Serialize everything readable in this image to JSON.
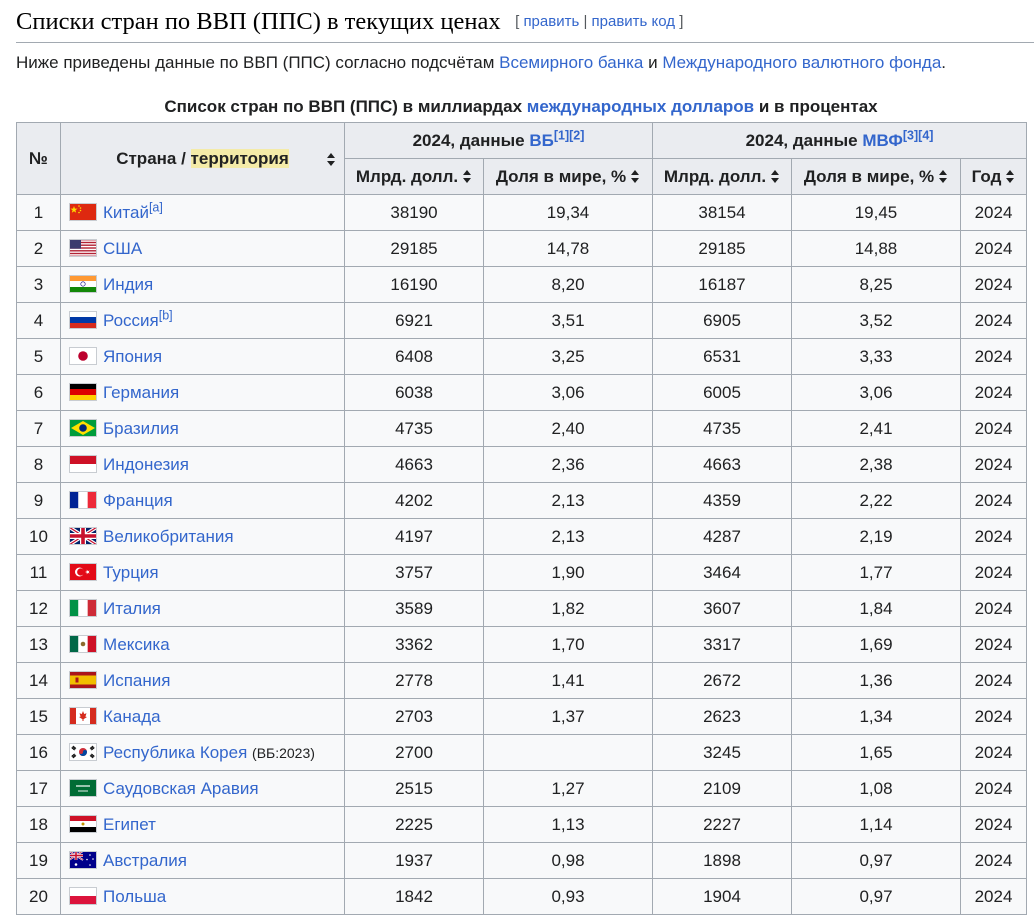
{
  "section": {
    "title": "Списки стран по ВВП (ППС) в текущих ценах",
    "edit_open": "[ ",
    "edit_label": "править",
    "edit_sep": " | ",
    "edit_code_label": "править код",
    "edit_close": " ]"
  },
  "intro": {
    "text_before": "Ниже приведены данные по ВВП (ППС) согласно подсчётам ",
    "link_wb": "Всемирного банка",
    "text_and": " и ",
    "link_imf": "Международного валютного фонда",
    "text_end": "."
  },
  "caption": {
    "text_before": "Список стран по ВВП (ППС) в миллиардах ",
    "link": "международных долларов",
    "text_after": " и в процентах"
  },
  "header": {
    "num": "№",
    "country_before": "Страна / ",
    "country_highlight": "территория",
    "wb_group_before": "2024, данные ",
    "wb_link": "ВБ",
    "wb_refs": [
      "[1]",
      "[2]"
    ],
    "imf_group_before": "2024, данные ",
    "imf_link": "МВФ",
    "imf_refs": [
      "[3]",
      "[4]"
    ],
    "col_bn": "Млрд. долл.",
    "col_share": "Доля в мире, %",
    "col_bn2": "Млрд. долл.",
    "col_share2": "Доля в мире, %",
    "col_year": "Год"
  },
  "rows": [
    {
      "n": "1",
      "flag": "china-flag-icon",
      "name": "Китай",
      "note": "[a]",
      "extra": "",
      "wb": "38190",
      "wb_share": "19,34",
      "imf": "38154",
      "imf_share": "19,45",
      "year": "2024"
    },
    {
      "n": "2",
      "flag": "usa-flag-icon",
      "name": "США",
      "note": "",
      "extra": "",
      "wb": "29185",
      "wb_share": "14,78",
      "imf": "29185",
      "imf_share": "14,88",
      "year": "2024"
    },
    {
      "n": "3",
      "flag": "india-flag-icon",
      "name": "Индия",
      "note": "",
      "extra": "",
      "wb": "16190",
      "wb_share": "8,20",
      "imf": "16187",
      "imf_share": "8,25",
      "year": "2024"
    },
    {
      "n": "4",
      "flag": "russia-flag-icon",
      "name": "Россия",
      "note": "[b]",
      "extra": "",
      "wb": "6921",
      "wb_share": "3,51",
      "imf": "6905",
      "imf_share": "3,52",
      "year": "2024"
    },
    {
      "n": "5",
      "flag": "japan-flag-icon",
      "name": "Япония",
      "note": "",
      "extra": "",
      "wb": "6408",
      "wb_share": "3,25",
      "imf": "6531",
      "imf_share": "3,33",
      "year": "2024"
    },
    {
      "n": "6",
      "flag": "germany-flag-icon",
      "name": "Германия",
      "note": "",
      "extra": "",
      "wb": "6038",
      "wb_share": "3,06",
      "imf": "6005",
      "imf_share": "3,06",
      "year": "2024"
    },
    {
      "n": "7",
      "flag": "brazil-flag-icon",
      "name": "Бразилия",
      "note": "",
      "extra": "",
      "wb": "4735",
      "wb_share": "2,40",
      "imf": "4735",
      "imf_share": "2,41",
      "year": "2024"
    },
    {
      "n": "8",
      "flag": "indonesia-flag-icon",
      "name": "Индонезия",
      "note": "",
      "extra": "",
      "wb": "4663",
      "wb_share": "2,36",
      "imf": "4663",
      "imf_share": "2,38",
      "year": "2024"
    },
    {
      "n": "9",
      "flag": "france-flag-icon",
      "name": "Франция",
      "note": "",
      "extra": "",
      "wb": "4202",
      "wb_share": "2,13",
      "imf": "4359",
      "imf_share": "2,22",
      "year": "2024"
    },
    {
      "n": "10",
      "flag": "uk-flag-icon",
      "name": "Великобритания",
      "note": "",
      "extra": "",
      "wb": "4197",
      "wb_share": "2,13",
      "imf": "4287",
      "imf_share": "2,19",
      "year": "2024"
    },
    {
      "n": "11",
      "flag": "turkey-flag-icon",
      "name": "Турция",
      "note": "",
      "extra": "",
      "wb": "3757",
      "wb_share": "1,90",
      "imf": "3464",
      "imf_share": "1,77",
      "year": "2024"
    },
    {
      "n": "12",
      "flag": "italy-flag-icon",
      "name": "Италия",
      "note": "",
      "extra": "",
      "wb": "3589",
      "wb_share": "1,82",
      "imf": "3607",
      "imf_share": "1,84",
      "year": "2024"
    },
    {
      "n": "13",
      "flag": "mexico-flag-icon",
      "name": "Мексика",
      "note": "",
      "extra": "",
      "wb": "3362",
      "wb_share": "1,70",
      "imf": "3317",
      "imf_share": "1,69",
      "year": "2024"
    },
    {
      "n": "14",
      "flag": "spain-flag-icon",
      "name": "Испания",
      "note": "",
      "extra": "",
      "wb": "2778",
      "wb_share": "1,41",
      "imf": "2672",
      "imf_share": "1,36",
      "year": "2024"
    },
    {
      "n": "15",
      "flag": "canada-flag-icon",
      "name": "Канада",
      "note": "",
      "extra": "",
      "wb": "2703",
      "wb_share": "1,37",
      "imf": "2623",
      "imf_share": "1,34",
      "year": "2024"
    },
    {
      "n": "16",
      "flag": "south-korea-flag-icon",
      "name": "Республика Корея",
      "note": "",
      "extra": "(ВБ:2023)",
      "wb": "2700",
      "wb_share": "",
      "imf": "3245",
      "imf_share": "1,65",
      "year": "2024"
    },
    {
      "n": "17",
      "flag": "saudi-arabia-flag-icon",
      "name": "Саудовская Аравия",
      "note": "",
      "extra": "",
      "wb": "2515",
      "wb_share": "1,27",
      "imf": "2109",
      "imf_share": "1,08",
      "year": "2024"
    },
    {
      "n": "18",
      "flag": "egypt-flag-icon",
      "name": "Египет",
      "note": "",
      "extra": "",
      "wb": "2225",
      "wb_share": "1,13",
      "imf": "2227",
      "imf_share": "1,14",
      "year": "2024"
    },
    {
      "n": "19",
      "flag": "australia-flag-icon",
      "name": "Австралия",
      "note": "",
      "extra": "",
      "wb": "1937",
      "wb_share": "0,98",
      "imf": "1898",
      "imf_share": "0,97",
      "year": "2024"
    },
    {
      "n": "20",
      "flag": "poland-flag-icon",
      "name": "Польша",
      "note": "",
      "extra": "",
      "wb": "1842",
      "wb_share": "0,93",
      "imf": "1904",
      "imf_share": "0,97",
      "year": "2024"
    }
  ]
}
